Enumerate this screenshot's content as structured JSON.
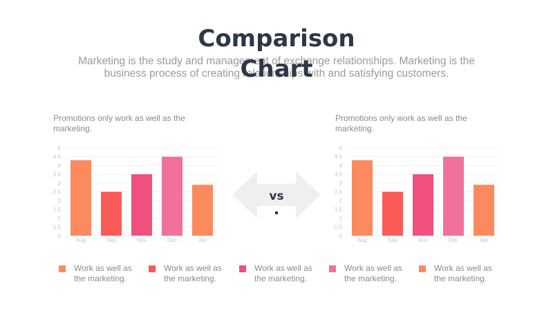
{
  "title_line1": "Comparison",
  "title_line2": "Chart",
  "subtitle": "Marketing is the study and management of exchange relationships. Marketing is the business process of creating relationships with and satisfying customers.",
  "vs_label": "vs",
  "colors": {
    "title": "#2d3748",
    "arrow": "#efefef",
    "Aug": "#fb8a5f",
    "Sep": "#fb5b57",
    "Nov": "#f0507e",
    "Dec": "#f1719a",
    "Jan": "#fb8a5f"
  },
  "legend": [
    {
      "label": "Work as well as the marketing.",
      "color": "#fb8a5f"
    },
    {
      "label": "Work as well as the marketing.",
      "color": "#fb5b57"
    },
    {
      "label": "Work as well as the marketing.",
      "color": "#f0507e"
    },
    {
      "label": "Work as well as the marketing.",
      "color": "#f1719a"
    },
    {
      "label": "Work as well as the marketing.",
      "color": "#fb8a5f"
    }
  ],
  "chart_data": [
    {
      "type": "bar",
      "title": "Promotions only work as well as the marketing.",
      "categories": [
        "Aug",
        "Sep",
        "Nov",
        "Dec",
        "Jan"
      ],
      "values": [
        4.3,
        2.5,
        3.5,
        4.5,
        2.9
      ],
      "colors": [
        "#fb8a5f",
        "#fb5b57",
        "#f0507e",
        "#f1719a",
        "#fb8a5f"
      ],
      "yticks": [
        "0",
        "0.5",
        "1",
        "1.5",
        "2",
        "2.5",
        "3",
        "3.5",
        "4",
        "4.5",
        "5"
      ],
      "ylim": [
        0,
        5
      ],
      "grid": true
    },
    {
      "type": "bar",
      "title": "Promotions only work as well as the marketing.",
      "categories": [
        "Aug",
        "Sep",
        "Nov",
        "Dec",
        "Jan"
      ],
      "values": [
        4.3,
        2.5,
        3.5,
        4.5,
        2.9
      ],
      "colors": [
        "#fb8a5f",
        "#fb5b57",
        "#f0507e",
        "#f1719a",
        "#fb8a5f"
      ],
      "yticks": [
        "0",
        "0.5",
        "1",
        "1.5",
        "2",
        "2.5",
        "3",
        "3.5",
        "4",
        "4.5",
        "5"
      ],
      "ylim": [
        0,
        5
      ],
      "grid": true
    }
  ]
}
